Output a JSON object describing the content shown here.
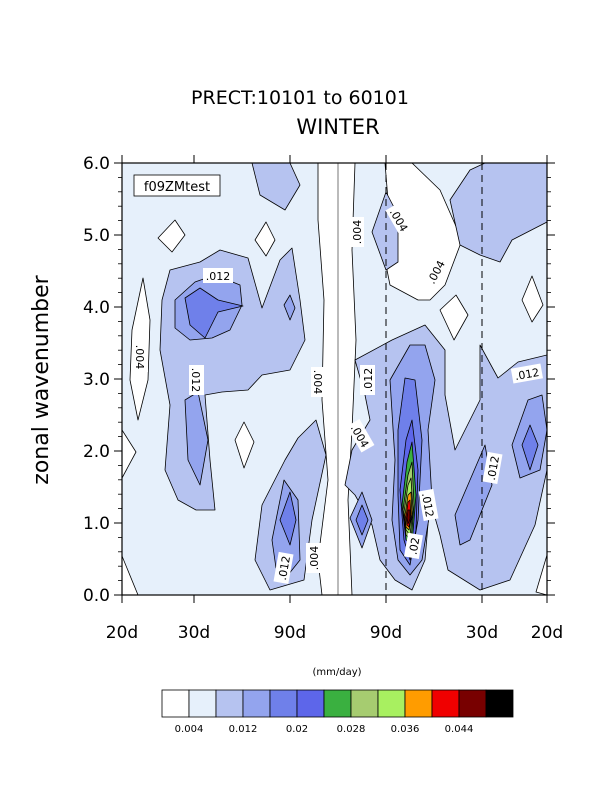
{
  "chart_data": {
    "type": "contour",
    "title": "PRECT:10101 to 60101",
    "subtitle": "WINTER",
    "ylabel": "zonal wavenumber",
    "inset_label": "f09ZMtest",
    "ylim": [
      0,
      6
    ],
    "y_ticks": [
      "0.0",
      "1.0",
      "2.0",
      "3.0",
      "4.0",
      "5.0",
      "6.0"
    ],
    "x_ticks": [
      "20d",
      "30d",
      "90d",
      "90d",
      "30d",
      "20d"
    ],
    "colorbar": {
      "units_label": "(mm/day)",
      "levels": [
        0.004,
        0.008,
        0.012,
        0.016,
        0.02,
        0.024,
        0.028,
        0.032,
        0.036,
        0.04,
        0.044,
        0.048
      ],
      "colors": [
        "#ffffff",
        "#e6f0fb",
        "#b6c3f0",
        "#93a4ee",
        "#6f80ea",
        "#5d66ea",
        "#3ab040",
        "#a6cc70",
        "#a8f060",
        "#ff9c00",
        "#f00000",
        "#780000",
        "#000000"
      ],
      "tick_labels": [
        "0.004",
        "0.012",
        "0.02",
        "0.028",
        "0.036",
        "0.044"
      ]
    },
    "contour_labels": [
      ".012",
      ".004",
      ".012",
      ".004",
      ".004",
      ".004",
      ".004",
      ".012",
      ".004",
      ".012",
      ".012",
      ".012",
      ".012",
      ".02",
      ".012",
      ".004"
    ],
    "features": [
      {
        "kind": "max",
        "wavenumber": 4.0,
        "value": 0.022
      },
      {
        "kind": "max",
        "wavenumber": 1.0,
        "value": 0.022
      },
      {
        "kind": "max",
        "wavenumber": 1.0,
        "value": 0.02
      },
      {
        "kind": "max",
        "wavenumber": 1.0,
        "value": 0.046
      },
      {
        "kind": "max",
        "wavenumber": 1.0,
        "value": 0.016
      },
      {
        "kind": "max",
        "wavenumber": 2.0,
        "value": 0.02
      }
    ]
  }
}
